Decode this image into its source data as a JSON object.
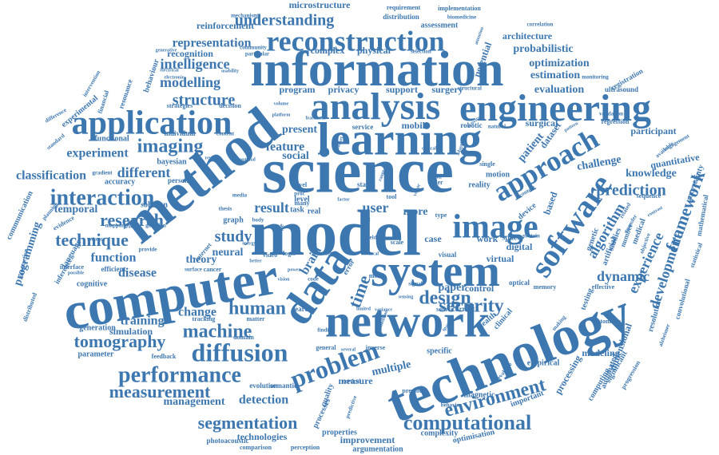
{
  "color": "#3d77b0",
  "words": [
    {
      "text": "information",
      "weight": 62
    },
    {
      "text": "science",
      "weight": 80
    },
    {
      "text": "model",
      "weight": 82
    },
    {
      "text": "computer",
      "weight": 66
    },
    {
      "text": "method",
      "weight": 70
    },
    {
      "text": "technology",
      "weight": 70
    },
    {
      "text": "network",
      "weight": 58
    },
    {
      "text": "system",
      "weight": 56
    },
    {
      "text": "learning",
      "weight": 58
    },
    {
      "text": "analysis",
      "weight": 48
    },
    {
      "text": "engineering",
      "weight": 48
    },
    {
      "text": "data",
      "weight": 56
    },
    {
      "text": "software",
      "weight": 40
    },
    {
      "text": "image",
      "weight": 42
    },
    {
      "text": "application",
      "weight": 42
    },
    {
      "text": "reconstruction",
      "weight": 36
    },
    {
      "text": "approach",
      "weight": 36
    },
    {
      "text": "problem",
      "weight": 32
    },
    {
      "text": "diffusion",
      "weight": 32
    },
    {
      "text": "computational",
      "weight": 26
    },
    {
      "text": "interaction",
      "weight": 28
    },
    {
      "text": "performance",
      "weight": 28
    },
    {
      "text": "imaging",
      "weight": 24
    },
    {
      "text": "security",
      "weight": 24
    },
    {
      "text": "environment",
      "weight": 24
    },
    {
      "text": "design",
      "weight": 24
    },
    {
      "text": "human",
      "weight": 24
    },
    {
      "text": "machine",
      "weight": 24
    },
    {
      "text": "segmentation",
      "weight": 22
    },
    {
      "text": "measurement",
      "weight": 22
    },
    {
      "text": "tomography",
      "weight": 22
    },
    {
      "text": "research",
      "weight": 22
    },
    {
      "text": "technique",
      "weight": 22
    },
    {
      "text": "understanding",
      "weight": 20
    },
    {
      "text": "representation",
      "weight": 16
    },
    {
      "text": "intelligence",
      "weight": 18
    },
    {
      "text": "modelling",
      "weight": 18
    },
    {
      "text": "structure",
      "weight": 20
    },
    {
      "text": "experiment",
      "weight": 16
    },
    {
      "text": "different",
      "weight": 18
    },
    {
      "text": "classification",
      "weight": 16
    },
    {
      "text": "framework",
      "weight": 22
    },
    {
      "text": "prediction",
      "weight": 20
    },
    {
      "text": "dynamic",
      "weight": 18
    },
    {
      "text": "development",
      "weight": 18
    },
    {
      "text": "experience",
      "weight": 18
    },
    {
      "text": "algorithm",
      "weight": 18
    },
    {
      "text": "time",
      "weight": 22
    },
    {
      "text": "study",
      "weight": 20
    },
    {
      "text": "result",
      "weight": 18
    },
    {
      "text": "user",
      "weight": 18
    },
    {
      "text": "feature",
      "weight": 16
    },
    {
      "text": "function",
      "weight": 16
    },
    {
      "text": "disease",
      "weight": 16
    },
    {
      "text": "training",
      "weight": 16
    },
    {
      "text": "theory",
      "weight": 14
    },
    {
      "text": "change",
      "weight": 16
    },
    {
      "text": "detection",
      "weight": 16
    },
    {
      "text": "management",
      "weight": 14
    },
    {
      "text": "multiple",
      "weight": 14
    },
    {
      "text": "measure",
      "weight": 12
    },
    {
      "text": "improvement",
      "weight": 12
    },
    {
      "text": "technologies",
      "weight": 12
    },
    {
      "text": "argumentation",
      "weight": 10
    },
    {
      "text": "programming",
      "weight": 14
    },
    {
      "text": "temporal",
      "weight": 14
    },
    {
      "text": "neural",
      "weight": 14
    },
    {
      "text": "brain",
      "weight": 16
    },
    {
      "text": "mobile",
      "weight": 12
    },
    {
      "text": "optimization",
      "weight": 14
    },
    {
      "text": "estimation",
      "weight": 14
    },
    {
      "text": "evaluation",
      "weight": 14
    },
    {
      "text": "knowledge",
      "weight": 14
    },
    {
      "text": "challenge",
      "weight": 14
    },
    {
      "text": "quantitative",
      "weight": 12
    },
    {
      "text": "participant",
      "weight": 12
    },
    {
      "text": "probabilistic",
      "weight": 14
    },
    {
      "text": "architecture",
      "weight": 12
    },
    {
      "text": "microstructure",
      "weight": 12
    },
    {
      "text": "reinforcement",
      "weight": 12
    },
    {
      "text": "complex",
      "weight": 12
    },
    {
      "text": "physical",
      "weight": 12
    },
    {
      "text": "potential",
      "weight": 12
    },
    {
      "text": "processing",
      "weight": 12
    },
    {
      "text": "modeling",
      "weight": 12
    },
    {
      "text": "simulation",
      "weight": 12
    },
    {
      "text": "parameter",
      "weight": 10
    },
    {
      "text": "generation",
      "weight": 10
    },
    {
      "text": "patient",
      "weight": 14
    },
    {
      "text": "dataset",
      "weight": 12
    },
    {
      "text": "paper",
      "weight": 14
    },
    {
      "text": "control",
      "weight": 12
    },
    {
      "text": "digital",
      "weight": 12
    },
    {
      "text": "virtual",
      "weight": 12
    },
    {
      "text": "work",
      "weight": 12
    },
    {
      "text": "space",
      "weight": 10
    },
    {
      "text": "more",
      "weight": 14
    },
    {
      "text": "case",
      "weight": 12
    },
    {
      "text": "present",
      "weight": 14
    },
    {
      "text": "social",
      "weight": 14
    },
    {
      "text": "program",
      "weight": 12
    },
    {
      "text": "privacy",
      "weight": 12
    },
    {
      "text": "support",
      "weight": 12
    },
    {
      "text": "surgery",
      "weight": 12
    },
    {
      "text": "surgical",
      "weight": 12
    },
    {
      "text": "bayesian",
      "weight": 10
    },
    {
      "text": "functional",
      "weight": 10
    },
    {
      "text": "cognitive",
      "weight": 10
    },
    {
      "text": "based",
      "weight": 12
    },
    {
      "text": "device",
      "weight": 10
    },
    {
      "text": "reality",
      "weight": 10
    },
    {
      "text": "motion",
      "weight": 10
    },
    {
      "text": "task",
      "weight": 10
    },
    {
      "text": "level",
      "weight": 10
    },
    {
      "text": "real",
      "weight": 10
    },
    {
      "text": "graph",
      "weight": 10
    },
    {
      "text": "solution",
      "weight": 10
    },
    {
      "text": "accuracy",
      "weight": 10
    },
    {
      "text": "person",
      "weight": 9
    },
    {
      "text": "efficient",
      "weight": 9
    },
    {
      "text": "statistical",
      "weight": 8
    },
    {
      "text": "optimisation",
      "weight": 10
    },
    {
      "text": "complexity",
      "weight": 10
    },
    {
      "text": "properties",
      "weight": 10
    },
    {
      "text": "processes",
      "weight": 10
    },
    {
      "text": "quality",
      "weight": 10
    },
    {
      "text": "magnetic",
      "weight": 10
    },
    {
      "text": "important",
      "weight": 10
    },
    {
      "text": "empirical",
      "weight": 10
    },
    {
      "text": "clinical",
      "weight": 10
    },
    {
      "text": "health",
      "weight": 10
    },
    {
      "text": "specific",
      "weight": 10
    },
    {
      "text": "semantic",
      "weight": 9
    },
    {
      "text": "evolution",
      "weight": 9
    },
    {
      "text": "comparison",
      "weight": 8
    },
    {
      "text": "perception",
      "weight": 8
    },
    {
      "text": "photoacoustic",
      "weight": 9
    },
    {
      "text": "feedback",
      "weight": 8
    },
    {
      "text": "domain",
      "weight": 8
    },
    {
      "text": "matter",
      "weight": 8
    },
    {
      "text": "search",
      "weight": 9
    },
    {
      "text": "tracking",
      "weight": 8
    },
    {
      "text": "general",
      "weight": 8
    },
    {
      "text": "inverse",
      "weight": 8
    },
    {
      "text": "finding",
      "weight": 7
    },
    {
      "text": "previous",
      "weight": 8
    },
    {
      "text": "current",
      "weight": 9
    },
    {
      "text": "source",
      "weight": 8
    },
    {
      "text": "optical",
      "weight": 9
    },
    {
      "text": "memory",
      "weight": 8
    },
    {
      "text": "effective",
      "weight": 8
    },
    {
      "text": "testing",
      "weight": 10
    },
    {
      "text": "genetic",
      "weight": 10
    },
    {
      "text": "artificial",
      "weight": 10
    },
    {
      "text": "studies",
      "weight": 10
    },
    {
      "text": "number",
      "weight": 9
    },
    {
      "text": "medical",
      "weight": 10
    },
    {
      "text": "sequence",
      "weight": 8
    },
    {
      "text": "mathematical",
      "weight": 9
    },
    {
      "text": "uncertainty",
      "weight": 10
    },
    {
      "text": "convolutional",
      "weight": 9
    },
    {
      "text": "resolution",
      "weight": 10
    },
    {
      "text": "dimensional",
      "weight": 12
    },
    {
      "text": "automated",
      "weight": 10
    },
    {
      "text": "computing",
      "weight": 10
    },
    {
      "text": "significant",
      "weight": 10
    },
    {
      "text": "progression",
      "weight": 8
    },
    {
      "text": "alzheimer",
      "weight": 7
    },
    {
      "text": "automatic",
      "weight": 8
    },
    {
      "text": "making",
      "weight": 7
    },
    {
      "text": "evaluate",
      "weight": 7
    },
    {
      "text": "behavior",
      "weight": 7
    },
    {
      "text": "predictive",
      "weight": 7
    },
    {
      "text": "regression",
      "weight": 8
    },
    {
      "text": "ultrasound",
      "weight": 9
    },
    {
      "text": "registration",
      "weight": 9
    },
    {
      "text": "monitoring",
      "weight": 7
    },
    {
      "text": "validation",
      "weight": 7
    },
    {
      "text": "correlation",
      "weight": 7
    },
    {
      "text": "biomedicine",
      "weight": 7
    },
    {
      "text": "implementation",
      "weight": 8
    },
    {
      "text": "requirement",
      "weight": 8
    },
    {
      "text": "distribution",
      "weight": 9
    },
    {
      "text": "assessment",
      "weight": 10
    },
    {
      "text": "mechanism",
      "weight": 7
    },
    {
      "text": "selection",
      "weight": 7
    },
    {
      "text": "community",
      "weight": 7
    },
    {
      "text": "particular",
      "weight": 7
    },
    {
      "text": "generative",
      "weight": 6
    },
    {
      "text": "electronic",
      "weight": 6
    },
    {
      "text": "usability",
      "weight": 6
    },
    {
      "text": "electrical",
      "weight": 6
    },
    {
      "text": "recognition",
      "weight": 12
    },
    {
      "text": "behaviour",
      "weight": 10
    },
    {
      "text": "resonance",
      "weight": 9
    },
    {
      "text": "financial",
      "weight": 8
    },
    {
      "text": "strategies",
      "weight": 8
    },
    {
      "text": "experimental",
      "weight": 10
    },
    {
      "text": "intervention",
      "weight": 7
    },
    {
      "text": "difference",
      "weight": 7
    },
    {
      "text": "standard",
      "weight": 7
    },
    {
      "text": "individual",
      "weight": 9
    },
    {
      "text": "decision",
      "weight": 8
    },
    {
      "text": "content",
      "weight": 7
    },
    {
      "text": "volume",
      "weight": 6
    },
    {
      "text": "structural",
      "weight": 7
    },
    {
      "text": "service",
      "weight": 9
    },
    {
      "text": "robotic",
      "weight": 9
    },
    {
      "text": "natural",
      "weight": 7
    },
    {
      "text": "gradient",
      "weight": 7
    },
    {
      "text": "review",
      "weight": 6
    },
    {
      "text": "communication",
      "weight": 10
    },
    {
      "text": "interactive",
      "weight": 8
    },
    {
      "text": "distributed",
      "weight": 8
    },
    {
      "text": "planning",
      "weight": 7
    },
    {
      "text": "evidence",
      "weight": 8
    },
    {
      "text": "mapping",
      "weight": 7
    },
    {
      "text": "practice",
      "weight": 6
    },
    {
      "text": "gaussian",
      "weight": 7
    },
    {
      "text": "estimate",
      "weight": 6
    },
    {
      "text": "provide",
      "weight": 7
    },
    {
      "text": "possible",
      "weight": 6
    },
    {
      "text": "interface",
      "weight": 8
    },
    {
      "text": "language",
      "weight": 10
    },
    {
      "text": "inference",
      "weight": 9
    },
    {
      "text": "surface",
      "weight": 7
    },
    {
      "text": "cancer",
      "weight": 8
    },
    {
      "text": "internet",
      "weight": 8
    },
    {
      "text": "media",
      "weight": 7
    },
    {
      "text": "video",
      "weight": 8
    },
    {
      "text": "logic",
      "weight": 8
    },
    {
      "text": "error",
      "weight": 9
    },
    {
      "text": "state",
      "weight": 9
    },
    {
      "text": "order",
      "weight": 8
    },
    {
      "text": "visual",
      "weight": 9
    },
    {
      "text": "novel",
      "weight": 8
    },
    {
      "text": "type",
      "weight": 8
    },
    {
      "text": "tool",
      "weight": 8
    },
    {
      "text": "text",
      "weight": 7
    },
    {
      "text": "scale",
      "weight": 8
    },
    {
      "text": "single",
      "weight": 8
    },
    {
      "text": "protein",
      "weight": 7
    },
    {
      "text": "context",
      "weight": 7
    },
    {
      "text": "optimal",
      "weight": 6
    },
    {
      "text": "many",
      "weight": 8
    },
    {
      "text": "body",
      "weight": 7
    },
    {
      "text": "thesis",
      "weight": 7
    },
    {
      "text": "better",
      "weight": 6
    },
    {
      "text": "shape",
      "weight": 8
    },
    {
      "text": "world",
      "weight": 7
    },
    {
      "text": "energy",
      "weight": 6
    },
    {
      "text": "vision",
      "weight": 6
    },
    {
      "text": "code",
      "weight": 7
    },
    {
      "text": "most",
      "weight": 8
    },
    {
      "text": "signal",
      "weight": 7
    },
    {
      "text": "sensing",
      "weight": 6
    },
    {
      "text": "variance",
      "weight": 6
    },
    {
      "text": "limited",
      "weight": 6
    },
    {
      "text": "condition",
      "weight": 6
    },
    {
      "text": "cortical",
      "weight": 7
    },
    {
      "text": "several",
      "weight": 6
    },
    {
      "text": "spatial",
      "weight": 6
    },
    {
      "text": "recent",
      "weight": 7
    },
    {
      "text": "field",
      "weight": 7
    },
    {
      "text": "local",
      "weight": 6
    },
    {
      "text": "power",
      "weight": 6
    },
    {
      "text": "proc",
      "weight": 7
    },
    {
      "text": "factor",
      "weight": 6
    },
    {
      "text": "global",
      "weight": 6
    },
    {
      "text": "critical",
      "weight": 6
    },
    {
      "text": "activity",
      "weight": 6
    },
    {
      "text": "platform",
      "weight": 6
    },
    {
      "text": "adaptive",
      "weight": 6
    },
    {
      "text": "pattern",
      "weight": 6
    },
    {
      "text": "related",
      "weight": 7
    },
    {
      "text": "transfer",
      "weight": 7
    },
    {
      "text": "available",
      "weight": 7
    },
    {
      "text": "engagement",
      "weight": 7
    },
    {
      "text": "contrast",
      "weight": 6
    },
    {
      "text": "objective",
      "weight": 7
    },
    {
      "text": "attention",
      "weight": 6
    },
    {
      "text": "fractional",
      "weight": 6
    },
    {
      "text": "market",
      "weight": 6
    },
    {
      "text": "range",
      "weight": 6
    },
    {
      "text": "vector",
      "weight": 6
    }
  ]
}
